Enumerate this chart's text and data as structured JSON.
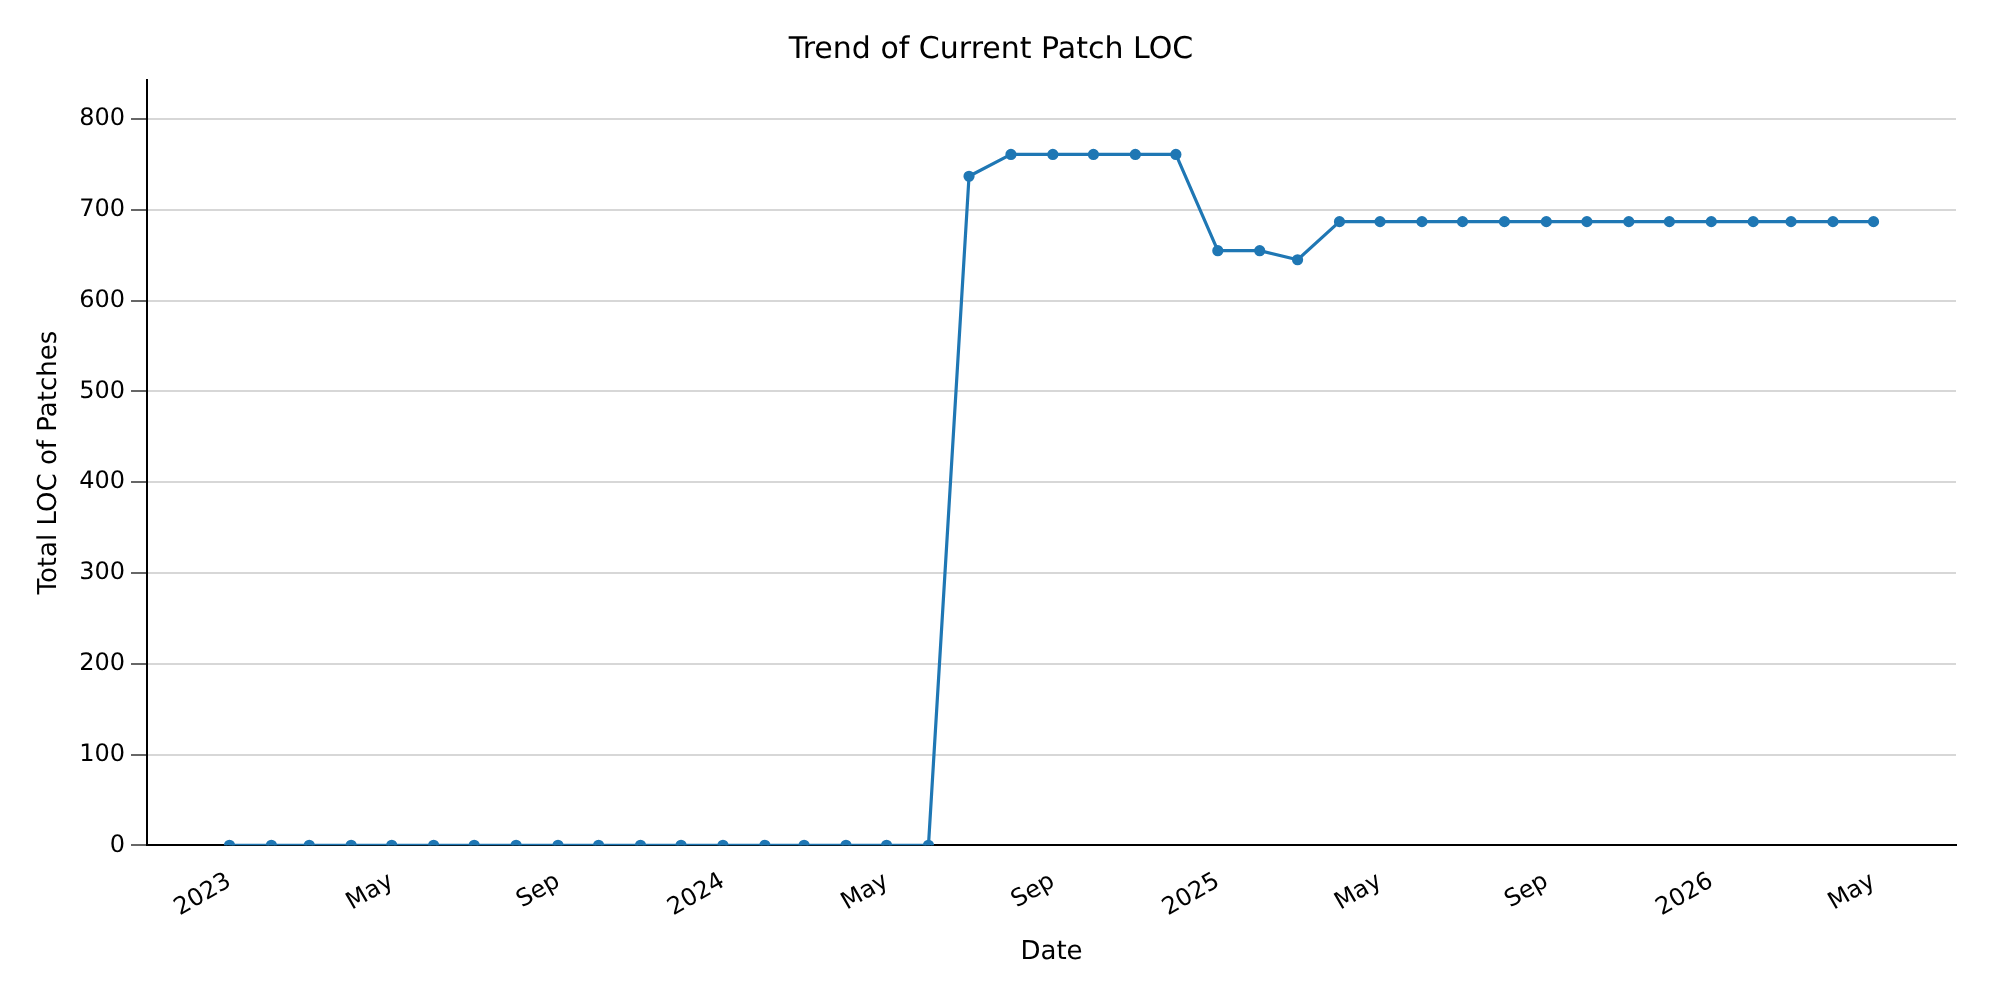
{
  "chart_data": {
    "type": "line",
    "title": "Trend of Current Patch LOC",
    "xlabel": "Date",
    "ylabel": "Total LOC of Patches",
    "x": [
      "2023-01",
      "2023-02",
      "2023-03",
      "2023-04",
      "2023-05",
      "2023-06",
      "2023-07",
      "2023-08",
      "2023-09",
      "2023-10",
      "2023-11",
      "2023-12",
      "2024-01",
      "2024-02",
      "2024-03",
      "2024-04",
      "2024-05",
      "2024-06",
      "2024-07",
      "2024-08",
      "2024-09",
      "2024-10",
      "2024-11",
      "2024-12",
      "2025-01",
      "2025-02",
      "2025-03",
      "2025-04",
      "2025-05",
      "2025-06",
      "2025-07",
      "2025-08",
      "2025-09",
      "2025-10",
      "2025-11",
      "2025-12",
      "2026-01",
      "2026-02",
      "2026-03",
      "2026-04",
      "2026-05"
    ],
    "series": [
      {
        "color": "#1f77b4",
        "values": [
          0,
          0,
          0,
          0,
          0,
          0,
          0,
          0,
          0,
          0,
          0,
          0,
          0,
          0,
          0,
          0,
          0,
          0,
          737,
          761,
          761,
          761,
          761,
          761,
          655,
          655,
          645,
          687,
          687,
          687,
          687,
          687,
          687,
          687,
          687,
          687,
          687,
          687,
          687,
          687,
          687
        ]
      }
    ],
    "xlim": [
      "2022-11-01",
      "2026-07-01"
    ],
    "xticks": [
      {
        "value": "2023-01",
        "label": "2023"
      },
      {
        "value": "2023-05",
        "label": "May"
      },
      {
        "value": "2023-09",
        "label": "Sep"
      },
      {
        "value": "2024-01",
        "label": "2024"
      },
      {
        "value": "2024-05",
        "label": "May"
      },
      {
        "value": "2024-09",
        "label": "Sep"
      },
      {
        "value": "2025-01",
        "label": "2025"
      },
      {
        "value": "2025-05",
        "label": "May"
      },
      {
        "value": "2025-09",
        "label": "Sep"
      },
      {
        "value": "2026-01",
        "label": "2026"
      },
      {
        "value": "2026-05",
        "label": "May"
      }
    ],
    "ylim": [
      0,
      843
    ],
    "yticks": [
      0,
      100,
      200,
      300,
      400,
      500,
      600,
      700,
      800
    ],
    "grid": "y",
    "legend": false,
    "marker": "circle",
    "line_style": "solid"
  }
}
